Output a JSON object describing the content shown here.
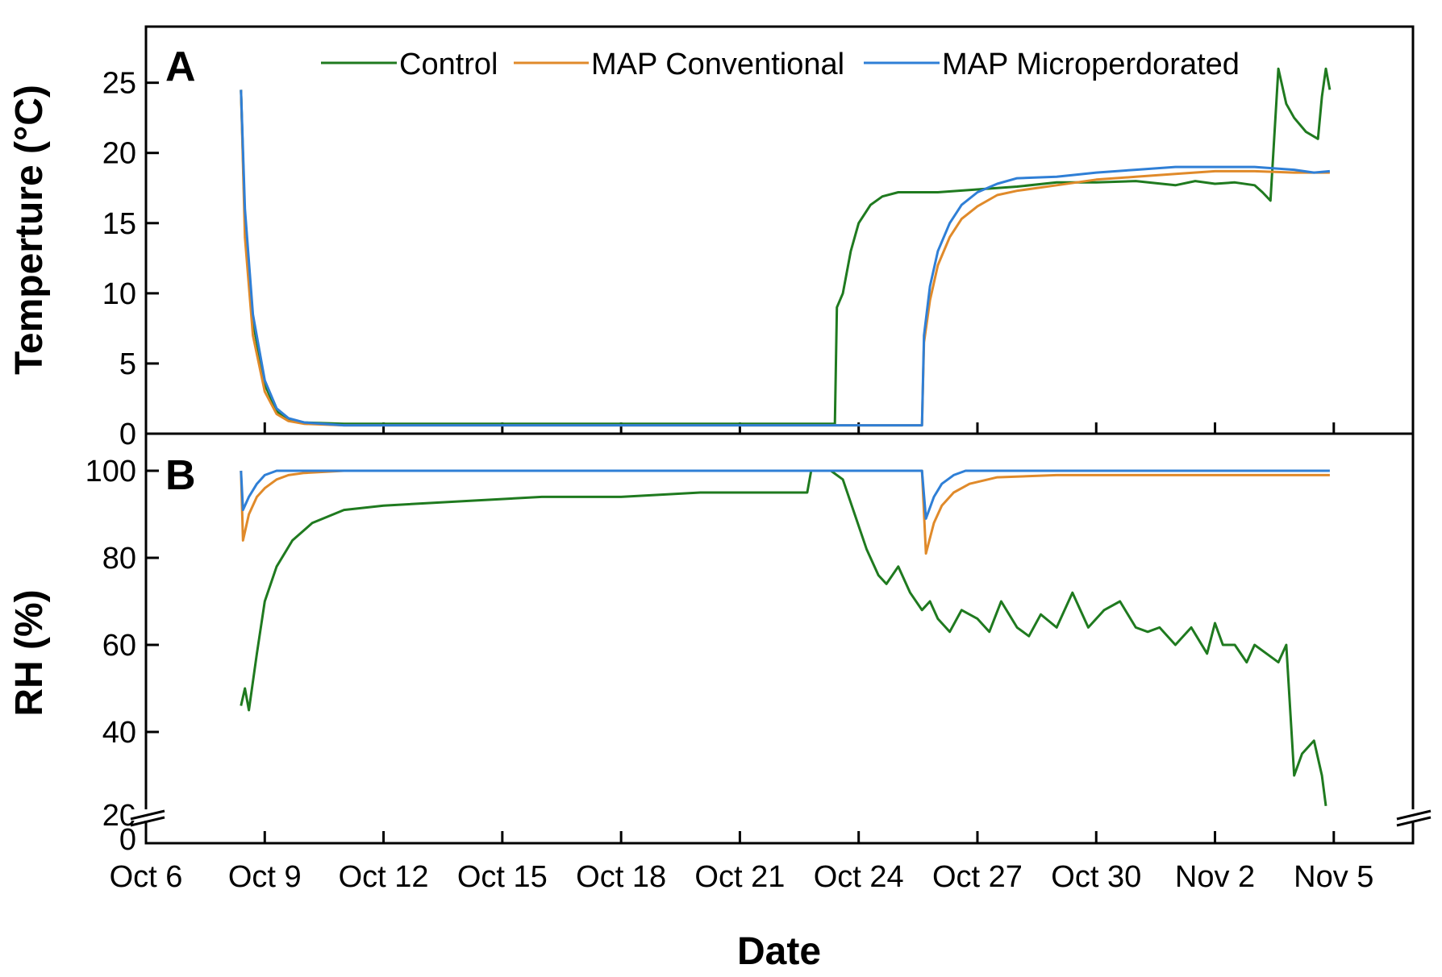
{
  "chart_data": {
    "type": "line",
    "xlabel": "Date",
    "x_ticks": [
      "Oct 6",
      "Oct 9",
      "Oct 12",
      "Oct 15",
      "Oct 18",
      "Oct 21",
      "Oct 24",
      "Oct 27",
      "Oct 30",
      "Nov 2",
      "Nov 5"
    ],
    "x_tick_days": [
      0,
      3,
      6,
      9,
      12,
      15,
      18,
      21,
      24,
      27,
      30
    ],
    "xlim_days": [
      0,
      32
    ],
    "x_unit_note": "days since Oct 6",
    "legend": {
      "placement": "top",
      "entries": [
        {
          "name": "Control",
          "color": "#1f7a1f"
        },
        {
          "name": "MAP Conventional",
          "color": "#e08a2a"
        },
        {
          "name": "MAP Microperdorated",
          "color": "#2f7fd6"
        }
      ]
    },
    "panels": [
      {
        "label": "A",
        "ylabel": "Temperture (°C)",
        "ylim": [
          0,
          29
        ],
        "y_ticks": [
          0,
          5,
          10,
          15,
          20,
          25
        ],
        "series": [
          {
            "name": "Control",
            "color": "#1f7a1f",
            "x": [
              2.4,
              2.5,
              2.7,
              3.0,
              3.3,
              3.6,
              4.0,
              5.0,
              8.0,
              12.0,
              16.0,
              17.4,
              17.45,
              17.6,
              17.8,
              18.0,
              18.3,
              18.6,
              19.0,
              20.0,
              21.0,
              22.0,
              23.0,
              24.0,
              25.0,
              26.0,
              26.5,
              27.0,
              27.5,
              28.0,
              28.2,
              28.4,
              28.6,
              28.8,
              29.0,
              29.3,
              29.6,
              29.7,
              29.8,
              29.9
            ],
            "y": [
              24.5,
              15,
              8,
              3.5,
              1.6,
              1.0,
              0.8,
              0.7,
              0.7,
              0.7,
              0.7,
              0.7,
              9,
              10,
              13,
              15,
              16.3,
              16.9,
              17.2,
              17.2,
              17.4,
              17.6,
              17.9,
              17.9,
              18.0,
              17.7,
              18.0,
              17.8,
              17.9,
              17.7,
              17.2,
              16.6,
              26.0,
              23.5,
              22.5,
              21.5,
              21.0,
              24.0,
              26.0,
              24.5
            ]
          },
          {
            "name": "MAP Conventional",
            "color": "#e08a2a",
            "x": [
              2.4,
              2.5,
              2.7,
              3.0,
              3.3,
              3.6,
              4.0,
              5.0,
              10.0,
              15.0,
              19.6,
              19.65,
              19.8,
              20.0,
              20.3,
              20.6,
              21.0,
              21.5,
              22.0,
              23.0,
              24.0,
              25.0,
              26.0,
              27.0,
              28.0,
              29.0,
              29.5,
              29.9
            ],
            "y": [
              24.5,
              14,
              7,
              3.0,
              1.4,
              0.9,
              0.7,
              0.6,
              0.6,
              0.6,
              0.6,
              6.5,
              9.5,
              12.0,
              14.0,
              15.3,
              16.2,
              17.0,
              17.3,
              17.7,
              18.1,
              18.3,
              18.5,
              18.7,
              18.7,
              18.6,
              18.6,
              18.6
            ]
          },
          {
            "name": "MAP Microperdorated",
            "color": "#2f7fd6",
            "x": [
              2.4,
              2.5,
              2.7,
              3.0,
              3.3,
              3.6,
              4.0,
              5.0,
              10.0,
              15.0,
              19.6,
              19.65,
              19.8,
              20.0,
              20.3,
              20.6,
              21.0,
              21.5,
              22.0,
              23.0,
              24.0,
              25.0,
              26.0,
              27.0,
              28.0,
              29.0,
              29.5,
              29.9
            ],
            "y": [
              24.5,
              16,
              8.5,
              3.8,
              1.8,
              1.1,
              0.8,
              0.6,
              0.6,
              0.6,
              0.6,
              7.0,
              10.5,
              13.0,
              15.0,
              16.3,
              17.2,
              17.8,
              18.2,
              18.3,
              18.6,
              18.8,
              19.0,
              19.0,
              19.0,
              18.8,
              18.6,
              18.7
            ]
          }
        ]
      },
      {
        "label": "B",
        "ylabel": "RH (%)",
        "ylim": [
          0,
          108
        ],
        "y_ticks": [
          0,
          20,
          40,
          60,
          80,
          100
        ],
        "axis_break": "between 0 and 20",
        "series": [
          {
            "name": "Control",
            "color": "#1f7a1f",
            "x": [
              2.4,
              2.5,
              2.6,
              2.8,
              3.0,
              3.3,
              3.7,
              4.2,
              5.0,
              6.0,
              8.0,
              10.0,
              12.0,
              14.0,
              15.0,
              16.0,
              16.7,
              16.8,
              17.0,
              17.3,
              17.6,
              17.9,
              18.2,
              18.5,
              18.7,
              19.0,
              19.3,
              19.6,
              19.8,
              20.0,
              20.3,
              20.6,
              21.0,
              21.3,
              21.6,
              22.0,
              22.3,
              22.6,
              23.0,
              23.4,
              23.8,
              24.2,
              24.6,
              25.0,
              25.3,
              25.6,
              26.0,
              26.4,
              26.8,
              27.0,
              27.2,
              27.5,
              27.8,
              28.0,
              28.3,
              28.6,
              28.8,
              29.0,
              29.2,
              29.5,
              29.7,
              29.8
            ],
            "y": [
              46,
              50,
              45,
              58,
              70,
              78,
              84,
              88,
              91,
              92,
              93,
              94,
              94,
              95,
              95,
              95,
              95,
              100,
              100,
              100,
              98,
              90,
              82,
              76,
              74,
              78,
              72,
              68,
              70,
              66,
              63,
              68,
              66,
              63,
              70,
              64,
              62,
              67,
              64,
              72,
              64,
              68,
              70,
              64,
              63,
              64,
              60,
              64,
              58,
              65,
              60,
              60,
              56,
              60,
              58,
              56,
              60,
              30,
              35,
              38,
              30,
              23
            ]
          },
          {
            "name": "MAP Conventional",
            "color": "#e08a2a",
            "x": [
              2.4,
              2.45,
              2.6,
              2.8,
              3.0,
              3.3,
              3.6,
              4.0,
              5.0,
              10.0,
              15.0,
              18.0,
              19.6,
              19.7,
              19.9,
              20.1,
              20.4,
              20.8,
              21.5,
              23.0,
              25.0,
              27.0,
              28.5,
              29.9
            ],
            "y": [
              100,
              84,
              90,
              94,
              96,
              98,
              99,
              99.5,
              100,
              100,
              100,
              100,
              100,
              81,
              88,
              92,
              95,
              97,
              98.5,
              99,
              99,
              99,
              99,
              99
            ]
          },
          {
            "name": "MAP Microperdorated",
            "color": "#2f7fd6",
            "x": [
              2.4,
              2.45,
              2.6,
              2.8,
              3.0,
              3.3,
              3.5,
              4.0,
              10.0,
              15.0,
              18.0,
              19.6,
              19.7,
              19.9,
              20.1,
              20.4,
              20.7,
              21.0,
              22.0,
              25.0,
              28.0,
              29.9
            ],
            "y": [
              100,
              91,
              94,
              97,
              99,
              100,
              100,
              100,
              100,
              100,
              100,
              100,
              89,
              94,
              97,
              99,
              100,
              100,
              100,
              100,
              100,
              100
            ]
          }
        ]
      }
    ]
  }
}
